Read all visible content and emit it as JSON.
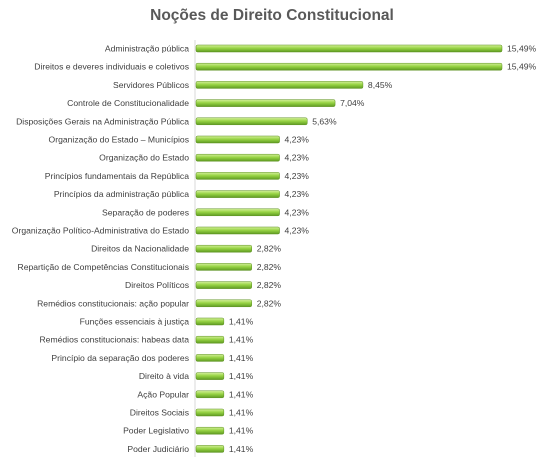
{
  "chart_data": {
    "type": "bar",
    "orientation": "horizontal",
    "title": "Noções de Direito Constitucional",
    "categories": [
      "Administração pública",
      "Direitos e deveres individuais e coletivos",
      "Servidores Públicos",
      "Controle de Constitucionalidade",
      "Disposições Gerais na Administração Pública",
      "Organização do Estado – Municípios",
      "Organização do Estado",
      "Princípios fundamentais da República",
      "Princípios da administração pública",
      "Separação de poderes",
      "Organização Político-Administrativa do Estado",
      "Direitos da Nacionalidade",
      "Repartição de Competências Constitucionais",
      "Direitos Políticos",
      "Remédios constitucionais: ação popular",
      "Funções essenciais à justiça",
      "Remédios constitucionais: habeas data",
      "Princípio da separação dos poderes",
      "Direito à vida",
      "Ação Popular",
      "Direitos Sociais",
      "Poder Legislativo",
      "Poder Judiciário"
    ],
    "values": [
      15.49,
      15.49,
      8.45,
      7.04,
      5.63,
      4.23,
      4.23,
      4.23,
      4.23,
      4.23,
      4.23,
      2.82,
      2.82,
      2.82,
      2.82,
      1.41,
      1.41,
      1.41,
      1.41,
      1.41,
      1.41,
      1.41,
      1.41
    ],
    "value_labels": [
      "15,49%",
      "15,49%",
      "8,45%",
      "7,04%",
      "5,63%",
      "4,23%",
      "4,23%",
      "4,23%",
      "4,23%",
      "4,23%",
      "4,23%",
      "2,82%",
      "2,82%",
      "2,82%",
      "2,82%",
      "1,41%",
      "1,41%",
      "1,41%",
      "1,41%",
      "1,41%",
      "1,41%",
      "1,41%",
      "1,41%"
    ],
    "xlim": [
      0,
      15.49
    ],
    "grid": false,
    "legend": "none",
    "bar_color": "#8ccc3c"
  }
}
